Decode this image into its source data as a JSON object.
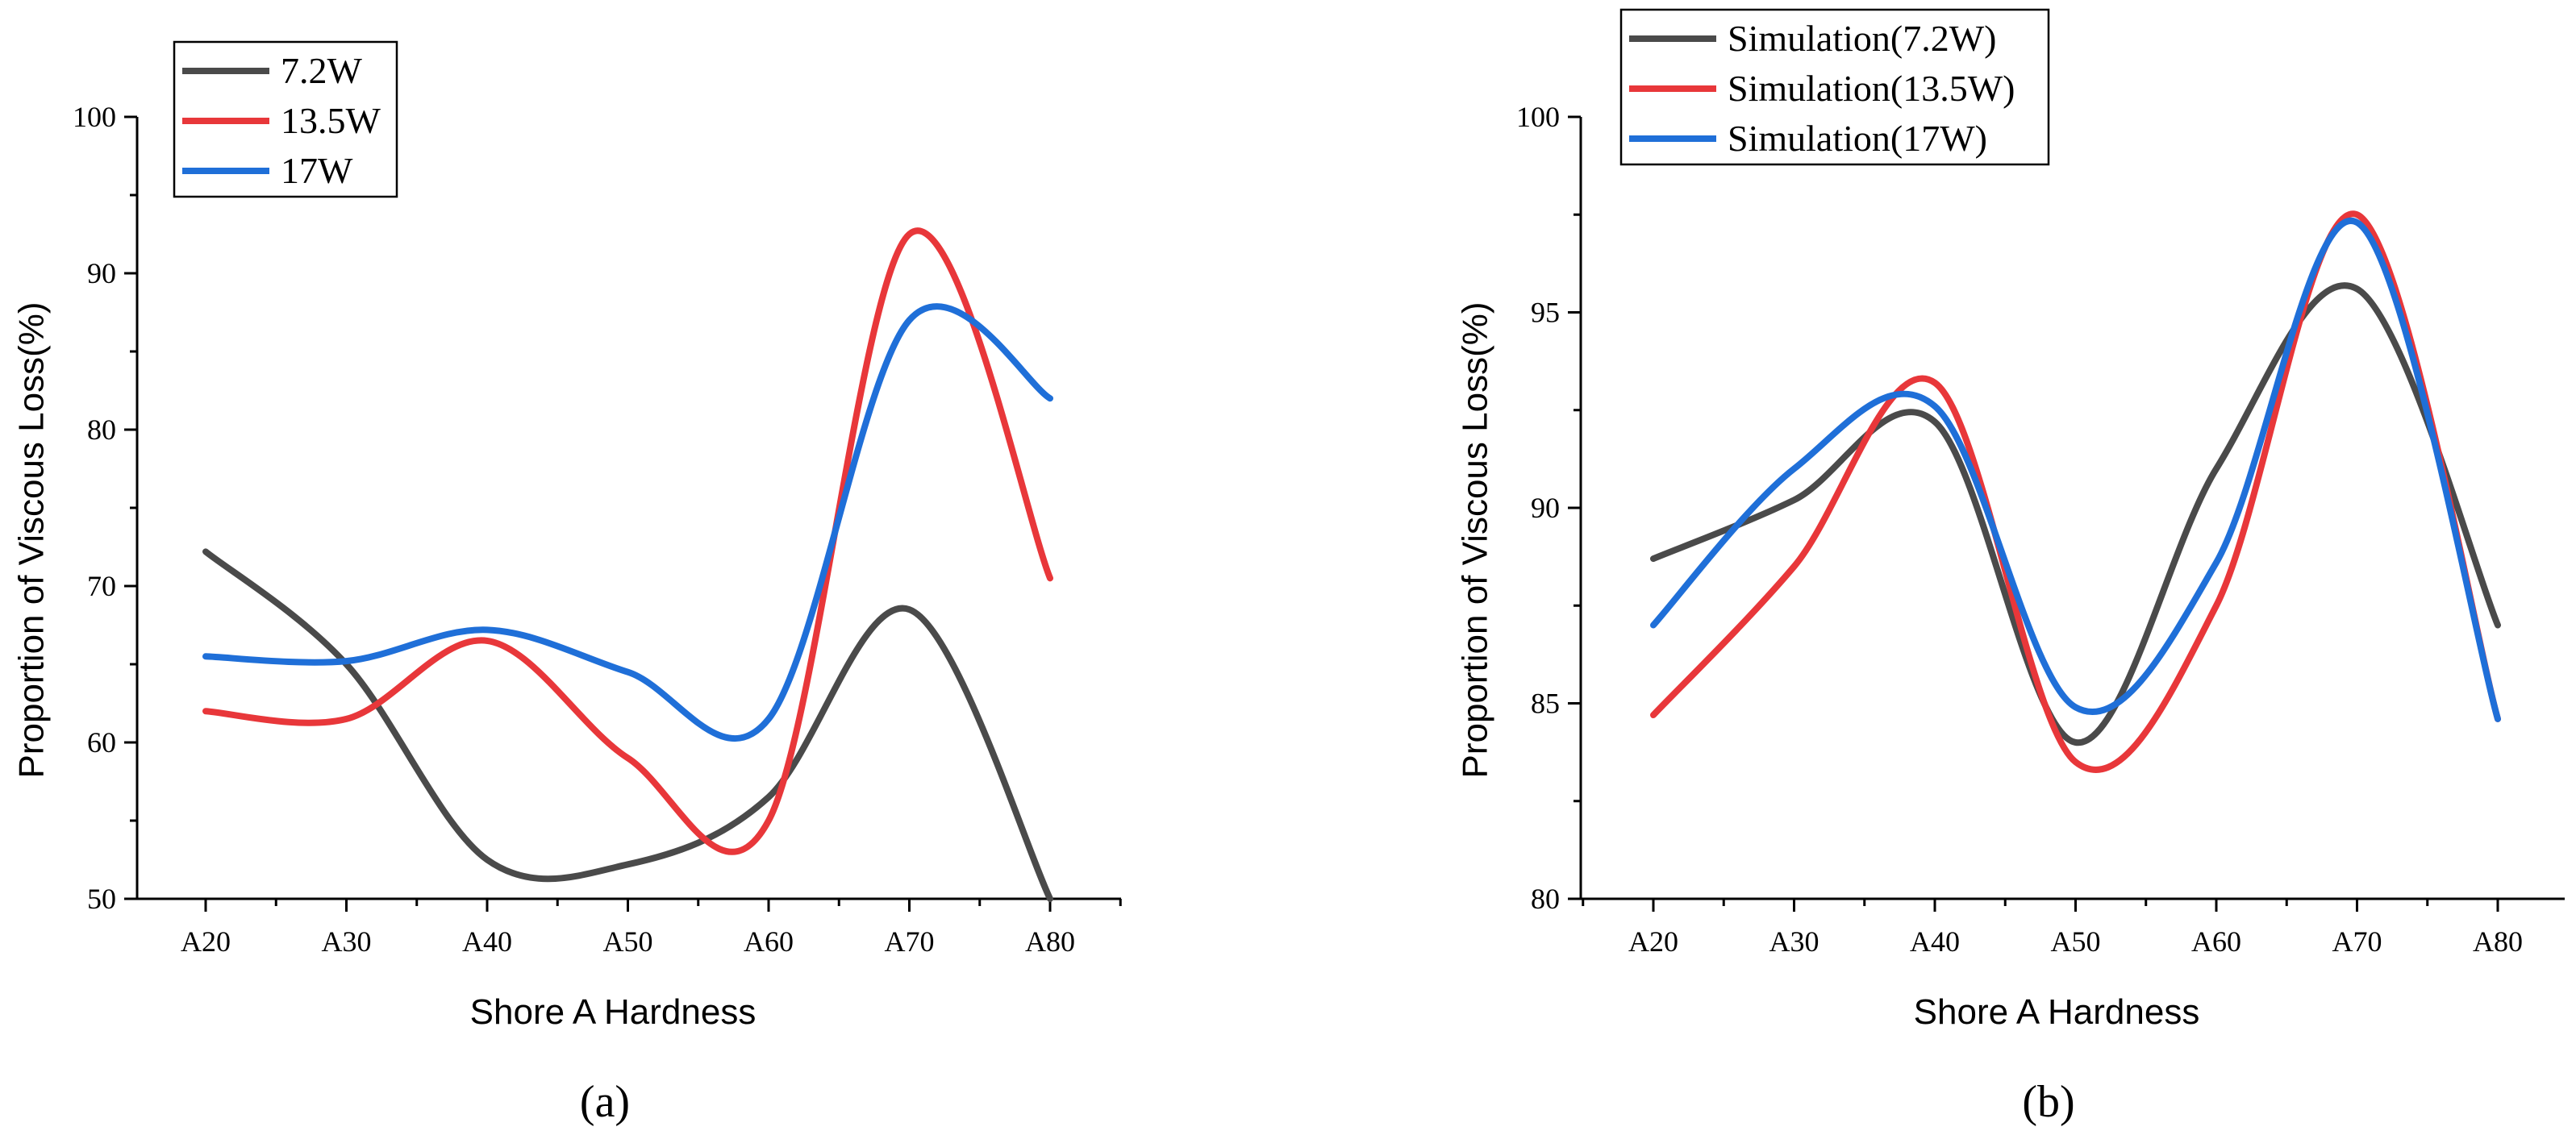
{
  "chart_data": [
    {
      "type": "line",
      "panel_label": "(a)",
      "xlabel": "Shore A Hardness",
      "ylabel": "Proportion of Viscous Loss(%)",
      "categories": [
        "A20",
        "A30",
        "A40",
        "A50",
        "A60",
        "A70",
        "A80"
      ],
      "ylim": [
        50,
        100
      ],
      "yticks": [
        50,
        60,
        70,
        80,
        90,
        100
      ],
      "legend_position": "top-left",
      "series": [
        {
          "name": "7.2W",
          "color": "#4a4a4a",
          "values": [
            72.2,
            65.0,
            52.5,
            52.2,
            56.5,
            68.5,
            50.0
          ]
        },
        {
          "name": "13.5W",
          "color": "#e8373a",
          "values": [
            62.0,
            61.5,
            66.5,
            59.0,
            55.0,
            92.5,
            70.5
          ]
        },
        {
          "name": "17W",
          "color": "#1f6fd8",
          "values": [
            65.5,
            65.2,
            67.2,
            64.5,
            61.5,
            87.0,
            82.0
          ]
        }
      ]
    },
    {
      "type": "line",
      "panel_label": "(b)",
      "xlabel": "Shore A Hardness",
      "ylabel": "Proportion of Viscous Loss(%)",
      "categories": [
        "A20",
        "A30",
        "A40",
        "A50",
        "A60",
        "A70",
        "A80"
      ],
      "ylim": [
        80,
        100
      ],
      "yticks": [
        80,
        85,
        90,
        95,
        100
      ],
      "legend_position": "top-left",
      "series": [
        {
          "name": "Simulation(7.2W)",
          "color": "#4a4a4a",
          "values": [
            88.7,
            90.2,
            92.2,
            84.0,
            91.0,
            95.6,
            87.0
          ]
        },
        {
          "name": "Simulation(13.5W)",
          "color": "#e8373a",
          "values": [
            84.7,
            88.5,
            93.2,
            83.5,
            87.5,
            97.5,
            84.6
          ]
        },
        {
          "name": "Simulation(17W)",
          "color": "#1f6fd8",
          "values": [
            87.0,
            91.0,
            92.6,
            84.9,
            88.6,
            97.3,
            84.6
          ]
        }
      ]
    }
  ]
}
